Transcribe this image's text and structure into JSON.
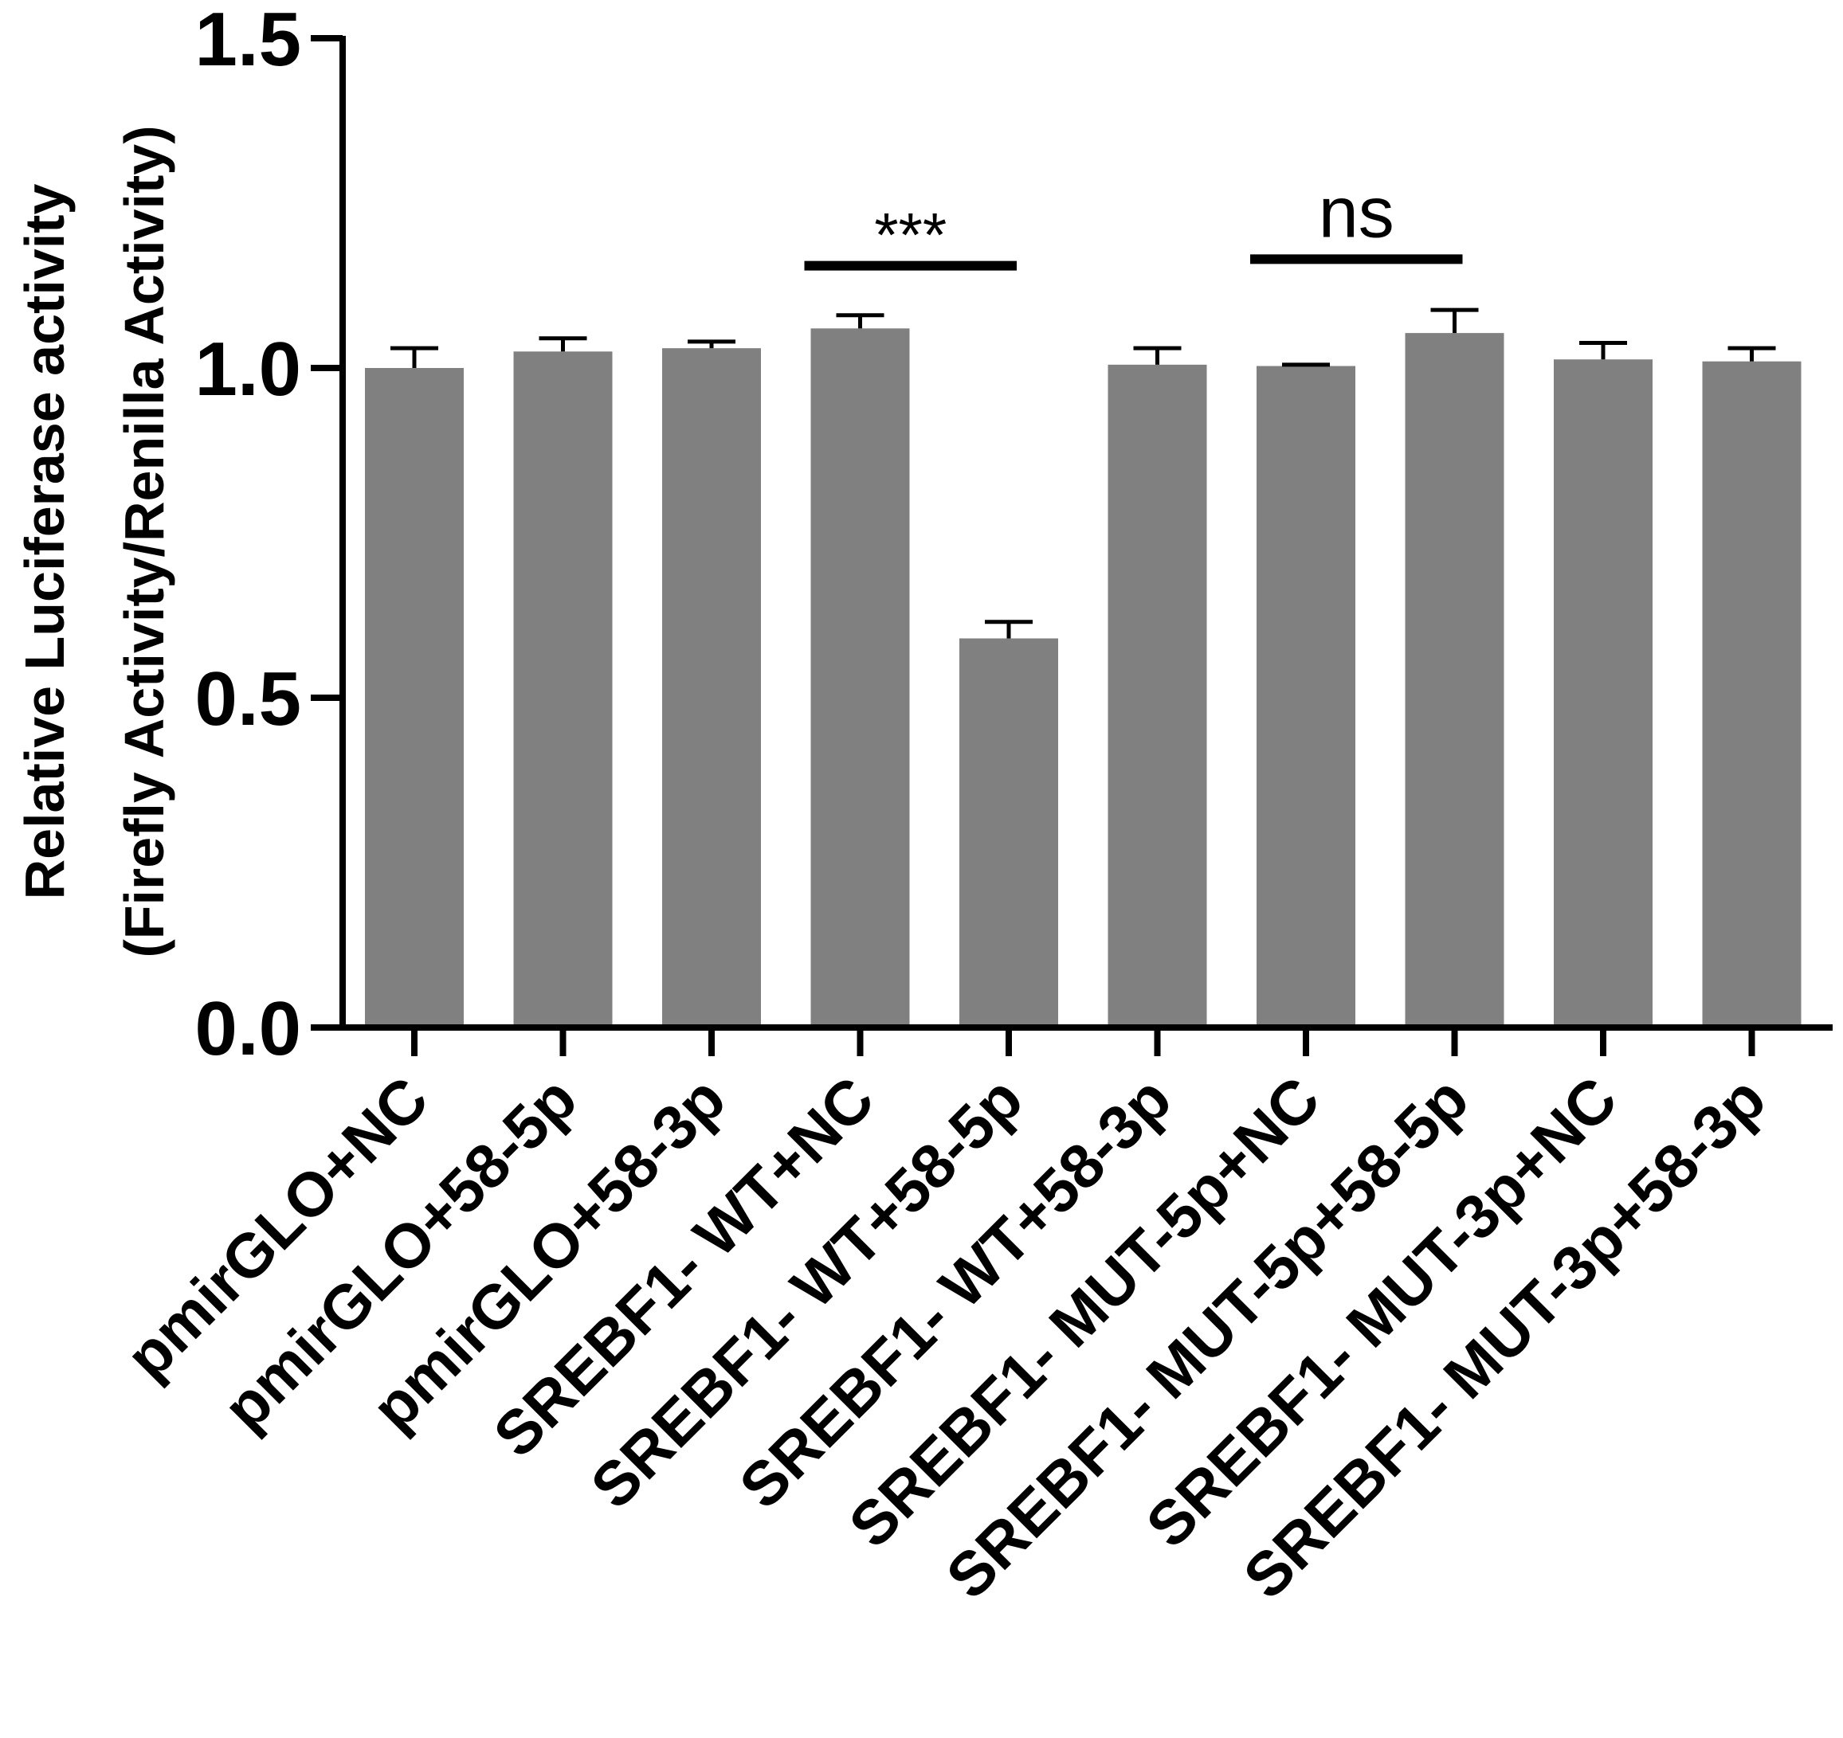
{
  "chart_data": {
    "type": "bar",
    "title": "",
    "ylabel_line1": "Relative Luciferase activity",
    "ylabel_line2": "(Firefly Activity/Renilla Activity)",
    "xlabel": "",
    "ylim": [
      0,
      1.5
    ],
    "yticks": [
      0.0,
      0.5,
      1.0,
      1.5
    ],
    "ytick_labels": [
      "0.0",
      "0.5",
      "1.0",
      "1.5"
    ],
    "categories": [
      "pmirGLO+NC",
      "pmirGLO+58-5p",
      "pmirGLO+58-3p",
      "SREBF1- WT+NC",
      "SREBF1- WT+58-5p",
      "SREBF1- WT+58-3p",
      "SREBF1- MUT-5p+NC",
      "SREBF1- MUT-5p+58-5p",
      "SREBF1- MUT-3p+NC",
      "SREBF1- MUT-3p+58-3p"
    ],
    "values": [
      1.0,
      1.025,
      1.03,
      1.06,
      0.59,
      1.005,
      1.003,
      1.053,
      1.013,
      1.01
    ],
    "errors": [
      0.03,
      0.02,
      0.01,
      0.02,
      0.025,
      0.025,
      0.002,
      0.035,
      0.025,
      0.02
    ],
    "bar_color": "#808080",
    "significance": [
      {
        "label": "***",
        "from_index": 3,
        "to_index": 4,
        "y": 1.155
      },
      {
        "label": "ns",
        "from_index": 6,
        "to_index": 7,
        "y": 1.165
      }
    ]
  }
}
